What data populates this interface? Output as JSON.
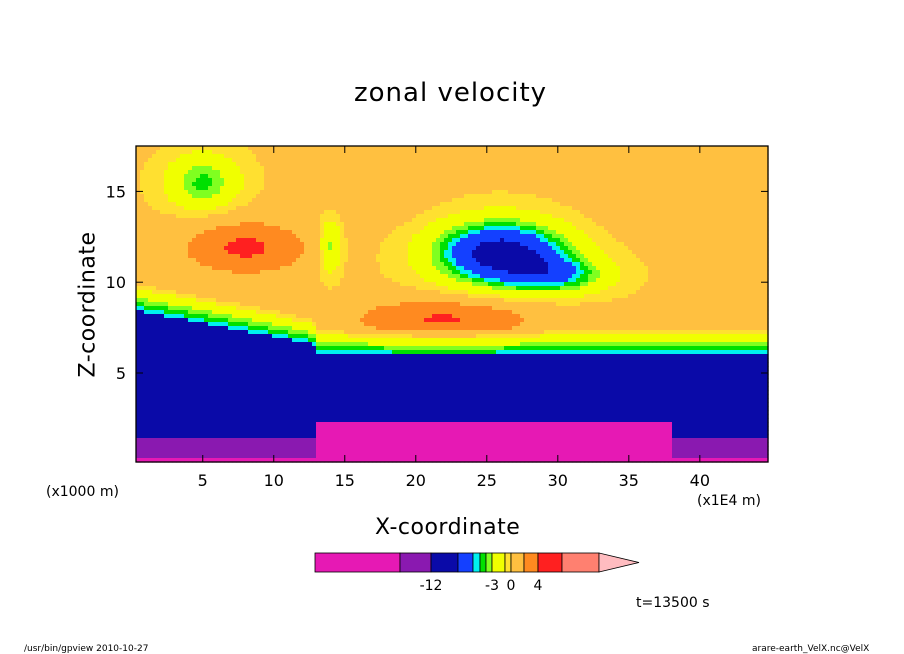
{
  "chart_data": {
    "type": "heatmap",
    "title": "zonal velocity",
    "xlabel": "X-coordinate",
    "ylabel": "Z-coordinate",
    "x_unit": "(x1E4 m)",
    "y_unit": "(x1000 m)",
    "x_ticks": [
      5,
      10,
      15,
      20,
      25,
      30,
      35,
      40
    ],
    "y_ticks": [
      5,
      10,
      15
    ],
    "xlim": [
      0.3,
      44.8
    ],
    "ylim": [
      0.1,
      17.5
    ],
    "colorbar": {
      "tick_labels": [
        "-12",
        "-3",
        "0",
        "4"
      ],
      "bins": [
        {
          "lo": -20,
          "hi": -15,
          "color": "#e619b4"
        },
        {
          "lo": -15,
          "hi": -12,
          "color": "#8a19b0"
        },
        {
          "lo": -12,
          "hi": -9,
          "color": "#0a0aa8"
        },
        {
          "lo": -9,
          "hi": -6,
          "color": "#1440ff"
        },
        {
          "lo": -6,
          "hi": -5,
          "color": "#00f0f0"
        },
        {
          "lo": -5,
          "hi": -4,
          "color": "#00e000"
        },
        {
          "lo": -4,
          "hi": -3,
          "color": "#80ff20"
        },
        {
          "lo": -3,
          "hi": -1,
          "color": "#f0ff00"
        },
        {
          "lo": -1,
          "hi": 0,
          "color": "#ffe030"
        },
        {
          "lo": 0,
          "hi": 2,
          "color": "#ffc040"
        },
        {
          "lo": 2,
          "hi": 4,
          "color": "#ff8a20"
        },
        {
          "lo": 4,
          "hi": 8,
          "color": "#ff2020"
        },
        {
          "lo": 8,
          "hi": 12,
          "color": "#ff8070"
        },
        {
          "lo": 12,
          "hi": 16,
          "color": "#ffbcc0"
        }
      ]
    },
    "annotation": "t=13500 s"
  },
  "footer": {
    "left": "/usr/bin/gpview   2010-10-27",
    "right": "arare-earth_VelX.nc@VelX"
  }
}
